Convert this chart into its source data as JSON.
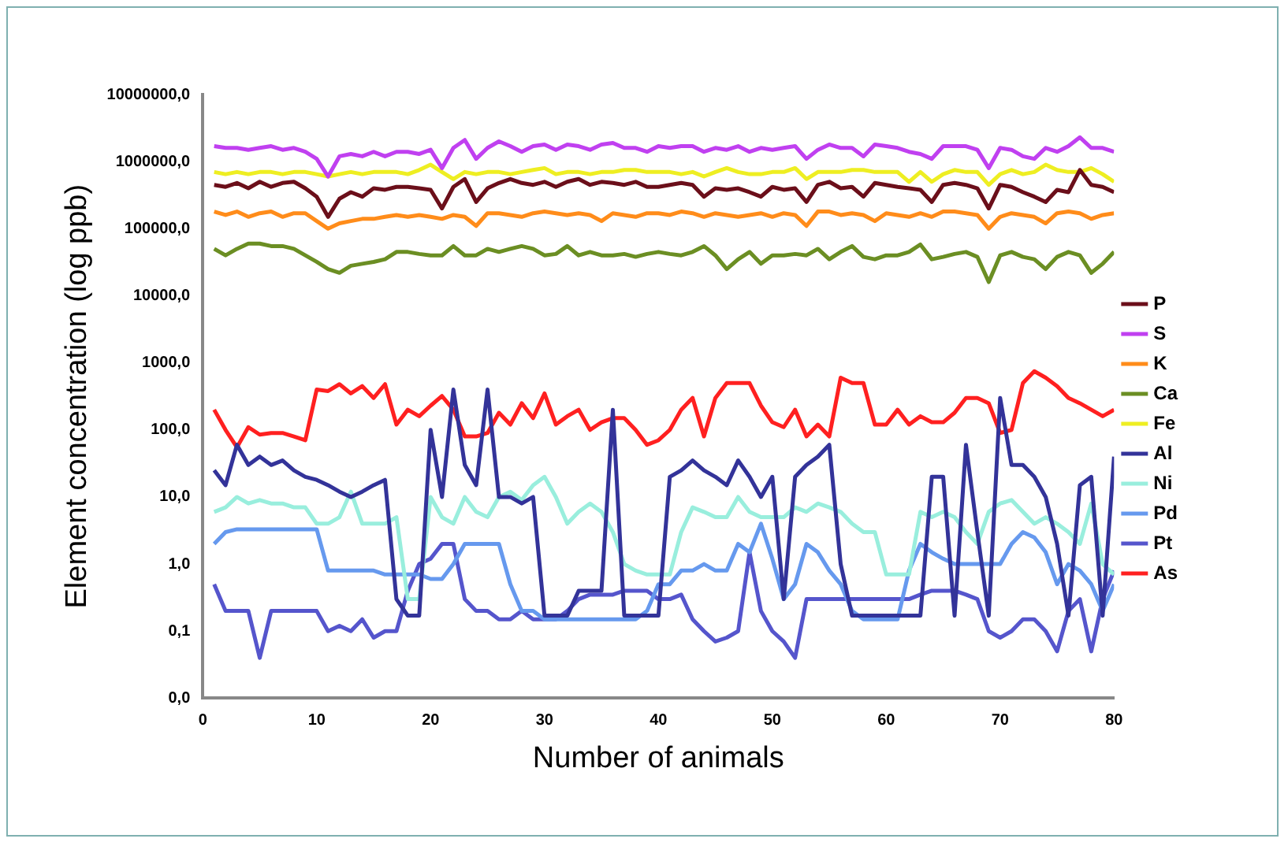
{
  "chart_data": {
    "type": "line",
    "xlabel": "Number of animals",
    "ylabel": "Element concentration (log ppb)",
    "log": "y",
    "grid": false,
    "legend": "right",
    "marker": "none",
    "line_style": "solid",
    "xlim": [
      0,
      80
    ],
    "xticks": [
      0,
      10,
      20,
      30,
      40,
      50,
      60,
      70,
      80
    ],
    "ylim": [
      0.01,
      10000000
    ],
    "yticks": [
      {
        "value": 0.01,
        "label": "0,0"
      },
      {
        "value": 0.1,
        "label": "0,1"
      },
      {
        "value": 1,
        "label": "1,0"
      },
      {
        "value": 10,
        "label": "10,0"
      },
      {
        "value": 100,
        "label": "100,0"
      },
      {
        "value": 1000,
        "label": "1000,0"
      },
      {
        "value": 10000,
        "label": "10000,0"
      },
      {
        "value": 100000,
        "label": "100000,0"
      },
      {
        "value": 1000000,
        "label": "1000000,0"
      },
      {
        "value": 10000000,
        "label": "10000000,0"
      }
    ],
    "x": [
      1,
      2,
      3,
      4,
      5,
      6,
      7,
      8,
      9,
      10,
      11,
      12,
      13,
      14,
      15,
      16,
      17,
      18,
      19,
      20,
      21,
      22,
      23,
      24,
      25,
      26,
      27,
      28,
      29,
      30,
      31,
      32,
      33,
      34,
      35,
      36,
      37,
      38,
      39,
      40,
      41,
      42,
      43,
      44,
      45,
      46,
      47,
      48,
      49,
      50,
      51,
      52,
      53,
      54,
      55,
      56,
      57,
      58,
      59,
      60,
      61,
      62,
      63,
      64,
      65,
      66,
      67,
      68,
      69,
      70,
      71,
      72,
      73,
      74,
      75,
      76,
      77,
      78,
      79,
      80
    ],
    "series": [
      {
        "name": "P",
        "color": "#6b0f1a",
        "values": [
          450000,
          420000,
          480000,
          400000,
          500000,
          420000,
          480000,
          500000,
          400000,
          300000,
          150000,
          280000,
          350000,
          300000,
          400000,
          380000,
          420000,
          420000,
          400000,
          380000,
          200000,
          420000,
          550000,
          250000,
          400000,
          480000,
          550000,
          480000,
          450000,
          500000,
          420000,
          500000,
          550000,
          450000,
          500000,
          480000,
          450000,
          500000,
          420000,
          420000,
          450000,
          480000,
          450000,
          300000,
          400000,
          380000,
          400000,
          350000,
          300000,
          420000,
          380000,
          400000,
          250000,
          450000,
          500000,
          400000,
          420000,
          300000,
          480000,
          450000,
          420000,
          400000,
          380000,
          250000,
          450000,
          480000,
          450000,
          400000,
          200000,
          450000,
          420000,
          350000,
          300000,
          250000,
          380000,
          350000,
          750000,
          450000,
          420000,
          350000
        ]
      },
      {
        "name": "S",
        "color": "#c040f0",
        "values": [
          1700000,
          1600000,
          1600000,
          1500000,
          1600000,
          1700000,
          1500000,
          1600000,
          1400000,
          1100000,
          600000,
          1200000,
          1300000,
          1200000,
          1400000,
          1200000,
          1400000,
          1400000,
          1300000,
          1500000,
          800000,
          1600000,
          2100000,
          1100000,
          1600000,
          2000000,
          1700000,
          1400000,
          1700000,
          1800000,
          1500000,
          1800000,
          1700000,
          1500000,
          1800000,
          1900000,
          1600000,
          1600000,
          1400000,
          1700000,
          1600000,
          1700000,
          1700000,
          1400000,
          1600000,
          1500000,
          1700000,
          1400000,
          1600000,
          1500000,
          1600000,
          1700000,
          1100000,
          1500000,
          1800000,
          1600000,
          1600000,
          1200000,
          1800000,
          1700000,
          1600000,
          1400000,
          1300000,
          1100000,
          1700000,
          1700000,
          1700000,
          1500000,
          800000,
          1600000,
          1500000,
          1200000,
          1100000,
          1600000,
          1400000,
          1700000,
          2300000,
          1600000,
          1600000,
          1400000
        ]
      },
      {
        "name": "K",
        "color": "#ff8c1a",
        "values": [
          180000,
          160000,
          180000,
          150000,
          170000,
          180000,
          150000,
          170000,
          170000,
          130000,
          100000,
          120000,
          130000,
          140000,
          140000,
          150000,
          160000,
          150000,
          160000,
          150000,
          140000,
          160000,
          150000,
          110000,
          170000,
          170000,
          160000,
          150000,
          170000,
          180000,
          170000,
          160000,
          170000,
          160000,
          130000,
          170000,
          160000,
          150000,
          170000,
          170000,
          160000,
          180000,
          170000,
          150000,
          170000,
          160000,
          150000,
          160000,
          170000,
          150000,
          170000,
          160000,
          110000,
          180000,
          180000,
          160000,
          170000,
          160000,
          130000,
          170000,
          160000,
          150000,
          170000,
          150000,
          180000,
          180000,
          170000,
          160000,
          100000,
          150000,
          170000,
          160000,
          150000,
          120000,
          170000,
          180000,
          170000,
          140000,
          160000,
          170000
        ]
      },
      {
        "name": "Ca",
        "color": "#6b8e23",
        "values": [
          50000,
          40000,
          50000,
          60000,
          60000,
          55000,
          55000,
          50000,
          40000,
          32000,
          25000,
          22000,
          28000,
          30000,
          32000,
          35000,
          45000,
          45000,
          42000,
          40000,
          40000,
          55000,
          40000,
          40000,
          50000,
          45000,
          50000,
          55000,
          50000,
          40000,
          42000,
          55000,
          40000,
          45000,
          40000,
          40000,
          42000,
          38000,
          42000,
          45000,
          42000,
          40000,
          45000,
          55000,
          40000,
          25000,
          35000,
          45000,
          30000,
          40000,
          40000,
          42000,
          40000,
          50000,
          35000,
          45000,
          55000,
          38000,
          35000,
          40000,
          40000,
          45000,
          58000,
          35000,
          38000,
          42000,
          45000,
          38000,
          16000,
          40000,
          45000,
          38000,
          35000,
          25000,
          38000,
          45000,
          40000,
          22000,
          30000,
          45000
        ]
      },
      {
        "name": "Fe",
        "color": "#eeee22",
        "values": [
          700000,
          650000,
          700000,
          650000,
          700000,
          700000,
          650000,
          700000,
          700000,
          650000,
          600000,
          650000,
          700000,
          650000,
          700000,
          700000,
          700000,
          650000,
          750000,
          900000,
          700000,
          550000,
          700000,
          650000,
          700000,
          700000,
          650000,
          700000,
          750000,
          800000,
          650000,
          700000,
          700000,
          650000,
          700000,
          700000,
          750000,
          750000,
          700000,
          700000,
          700000,
          650000,
          700000,
          600000,
          700000,
          800000,
          700000,
          650000,
          650000,
          700000,
          700000,
          800000,
          550000,
          700000,
          700000,
          700000,
          750000,
          750000,
          700000,
          700000,
          700000,
          500000,
          700000,
          500000,
          650000,
          750000,
          700000,
          700000,
          450000,
          650000,
          750000,
          650000,
          700000,
          900000,
          750000,
          700000,
          700000,
          800000,
          650000,
          500000
        ]
      },
      {
        "name": "Al",
        "color": "#333399",
        "values": [
          25,
          15,
          60,
          30,
          40,
          30,
          35,
          25,
          20,
          18,
          15,
          12,
          10,
          12,
          15,
          18,
          0.3,
          0.17,
          0.17,
          100,
          10,
          400,
          30,
          15,
          400,
          10,
          10,
          8,
          10,
          0.17,
          0.17,
          0.17,
          0.4,
          0.4,
          0.4,
          200,
          0.17,
          0.17,
          0.17,
          0.17,
          20,
          25,
          35,
          25,
          20,
          15,
          35,
          20,
          10,
          20,
          0.3,
          20,
          30,
          40,
          60,
          1,
          0.17,
          0.17,
          0.17,
          0.17,
          0.17,
          0.17,
          0.17,
          20,
          20,
          0.17,
          60,
          3,
          0.17,
          300,
          30,
          30,
          20,
          10,
          2,
          0.17,
          15,
          20,
          0.17,
          40
        ]
      },
      {
        "name": "Ni",
        "color": "#99eedd",
        "values": [
          6,
          7,
          10,
          8,
          9,
          8,
          8,
          7,
          7,
          4,
          4,
          5,
          12,
          4,
          4,
          4,
          5,
          0.3,
          0.3,
          10,
          5,
          4,
          10,
          6,
          5,
          10,
          12,
          9,
          15,
          20,
          10,
          4,
          6,
          8,
          6,
          3,
          1,
          0.8,
          0.7,
          0.7,
          0.7,
          3,
          7,
          6,
          5,
          5,
          10,
          6,
          5,
          5,
          5,
          7,
          6,
          8,
          7,
          6,
          4,
          3,
          3,
          0.7,
          0.7,
          0.7,
          6,
          5,
          6,
          5,
          3,
          2,
          6,
          8,
          9,
          6,
          4,
          5,
          4,
          3,
          2,
          8,
          1,
          0.7
        ]
      },
      {
        "name": "Pd",
        "color": "#6699ee",
        "values": [
          2,
          3,
          3.3,
          3.3,
          3.3,
          3.3,
          3.3,
          3.3,
          3.3,
          3.3,
          0.8,
          0.8,
          0.8,
          0.8,
          0.8,
          0.7,
          0.7,
          0.7,
          0.7,
          0.6,
          0.6,
          1,
          2,
          2,
          2,
          2,
          0.5,
          0.2,
          0.2,
          0.15,
          0.15,
          0.15,
          0.15,
          0.15,
          0.15,
          0.15,
          0.15,
          0.15,
          0.2,
          0.5,
          0.5,
          0.8,
          0.8,
          1,
          0.8,
          0.8,
          2,
          1.5,
          4,
          1.2,
          0.3,
          0.5,
          2,
          1.5,
          0.8,
          0.5,
          0.2,
          0.15,
          0.15,
          0.15,
          0.15,
          0.8,
          2,
          1.5,
          1.2,
          1,
          1,
          1,
          1,
          1,
          2,
          3,
          2.5,
          1.5,
          0.5,
          1,
          0.8,
          0.5,
          0.2,
          0.5
        ]
      },
      {
        "name": "Pt",
        "color": "#5555cc",
        "values": [
          0.5,
          0.2,
          0.2,
          0.2,
          0.04,
          0.2,
          0.2,
          0.2,
          0.2,
          0.2,
          0.1,
          0.12,
          0.1,
          0.15,
          0.08,
          0.1,
          0.1,
          0.4,
          1,
          1.2,
          2,
          2,
          0.3,
          0.2,
          0.2,
          0.15,
          0.15,
          0.2,
          0.15,
          0.15,
          0.15,
          0.2,
          0.3,
          0.35,
          0.35,
          0.35,
          0.4,
          0.4,
          0.4,
          0.3,
          0.3,
          0.35,
          0.15,
          0.1,
          0.07,
          0.08,
          0.1,
          1.5,
          0.2,
          0.1,
          0.07,
          0.04,
          0.3,
          0.3,
          0.3,
          0.3,
          0.3,
          0.3,
          0.3,
          0.3,
          0.3,
          0.3,
          0.35,
          0.4,
          0.4,
          0.4,
          0.35,
          0.3,
          0.1,
          0.08,
          0.1,
          0.15,
          0.15,
          0.1,
          0.05,
          0.2,
          0.3,
          0.05,
          0.3,
          0.8
        ]
      },
      {
        "name": "As",
        "color": "#ff2020",
        "values": [
          200,
          100,
          55,
          110,
          85,
          90,
          90,
          80,
          70,
          400,
          380,
          480,
          350,
          450,
          300,
          480,
          120,
          200,
          160,
          230,
          320,
          200,
          80,
          80,
          90,
          180,
          120,
          250,
          150,
          350,
          120,
          160,
          200,
          100,
          130,
          150,
          150,
          100,
          60,
          70,
          100,
          200,
          300,
          80,
          300,
          500,
          500,
          500,
          230,
          130,
          110,
          200,
          80,
          120,
          80,
          600,
          500,
          500,
          120,
          120,
          200,
          120,
          160,
          130,
          130,
          180,
          300,
          300,
          250,
          90,
          100,
          500,
          750,
          600,
          450,
          300,
          250,
          200,
          160,
          200
        ]
      }
    ]
  }
}
